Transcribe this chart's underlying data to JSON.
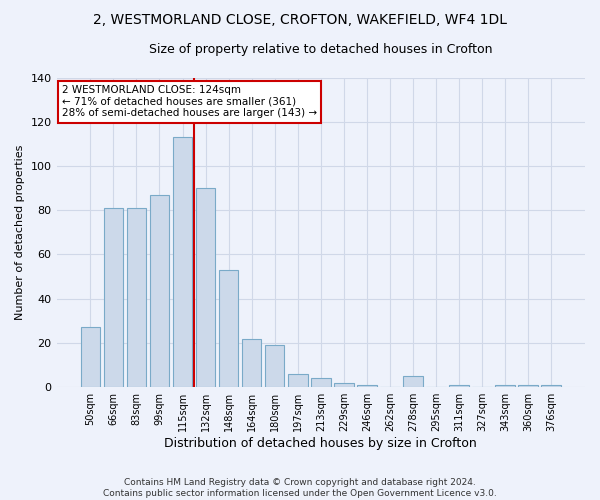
{
  "title": "2, WESTMORLAND CLOSE, CROFTON, WAKEFIELD, WF4 1DL",
  "subtitle": "Size of property relative to detached houses in Crofton",
  "xlabel": "Distribution of detached houses by size in Crofton",
  "ylabel": "Number of detached properties",
  "bar_values": [
    27,
    81,
    81,
    87,
    113,
    90,
    53,
    22,
    19,
    6,
    4,
    2,
    1,
    0,
    5,
    0,
    1,
    0,
    1,
    1,
    1
  ],
  "categories": [
    "50sqm",
    "66sqm",
    "83sqm",
    "99sqm",
    "115sqm",
    "132sqm",
    "148sqm",
    "164sqm",
    "180sqm",
    "197sqm",
    "213sqm",
    "229sqm",
    "246sqm",
    "262sqm",
    "278sqm",
    "295sqm",
    "311sqm",
    "327sqm",
    "343sqm",
    "360sqm",
    "376sqm"
  ],
  "bar_color": "#ccd9ea",
  "bar_edge_color": "#7aaac8",
  "vline_x": 4.5,
  "vline_color": "#cc0000",
  "annotation_text": "2 WESTMORLAND CLOSE: 124sqm\n← 71% of detached houses are smaller (361)\n28% of semi-detached houses are larger (143) →",
  "annotation_box_color": "white",
  "annotation_box_edge": "#cc0000",
  "ylim": [
    0,
    140
  ],
  "yticks": [
    0,
    20,
    40,
    60,
    80,
    100,
    120,
    140
  ],
  "grid_color": "#d0d8e8",
  "footer": "Contains HM Land Registry data © Crown copyright and database right 2024.\nContains public sector information licensed under the Open Government Licence v3.0.",
  "bg_color": "#eef2fb",
  "plot_bg_color": "#eef2fb",
  "title_fontsize": 10,
  "subtitle_fontsize": 9,
  "title_fontweight": "normal"
}
